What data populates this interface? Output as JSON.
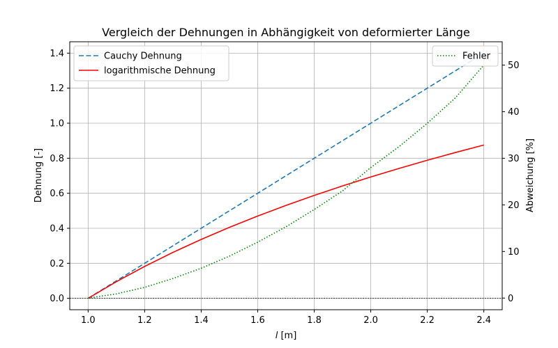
{
  "chart_data": {
    "type": "line",
    "title": "Vergleich der Dehnungen in Abhängigkeit von deformierter Länge",
    "xlabel_italic": "l",
    "xlabel_unit": " [m]",
    "ylabel_left": "Dehnung [-]",
    "ylabel_right": "Abweichung [%]",
    "xlim": [
      0.935,
      2.465
    ],
    "ylim_left": [
      -0.065,
      1.465
    ],
    "ylim_right": [
      -2.5,
      55
    ],
    "x_ticks": [
      1.0,
      1.2,
      1.4,
      1.6,
      1.8,
      2.0,
      2.2,
      2.4
    ],
    "x_tick_labels": [
      "1.0",
      "1.2",
      "1.4",
      "1.6",
      "1.8",
      "2.0",
      "2.2",
      "2.4"
    ],
    "y_left_ticks": [
      0.0,
      0.2,
      0.4,
      0.6,
      0.8,
      1.0,
      1.2,
      1.4
    ],
    "y_left_tick_labels": [
      "0.0",
      "0.2",
      "0.4",
      "0.6",
      "0.8",
      "1.0",
      "1.2",
      "1.4"
    ],
    "y_right_ticks": [
      0,
      10,
      20,
      30,
      40,
      50
    ],
    "y_right_tick_labels": [
      "0",
      "10",
      "20",
      "30",
      "40",
      "50"
    ],
    "grid": true,
    "zero_line": true,
    "series": [
      {
        "name": "Cauchy Dehnung",
        "axis": "left",
        "color": "#1f77b4",
        "style": "dashed",
        "x": [
          1.0,
          1.1,
          1.2,
          1.3,
          1.4,
          1.5,
          1.6,
          1.7,
          1.8,
          1.9,
          2.0,
          2.1,
          2.2,
          2.3,
          2.4
        ],
        "y": [
          0.0,
          0.1,
          0.2,
          0.3,
          0.4,
          0.5,
          0.6,
          0.7,
          0.8,
          0.9,
          1.0,
          1.1,
          1.2,
          1.3,
          1.4
        ]
      },
      {
        "name": "logarithmische Dehnung",
        "axis": "left",
        "color": "#ff0000",
        "style": "solid",
        "x": [
          1.0,
          1.1,
          1.2,
          1.3,
          1.4,
          1.5,
          1.6,
          1.7,
          1.8,
          1.9,
          2.0,
          2.1,
          2.2,
          2.3,
          2.4
        ],
        "y": [
          0.0,
          0.0953,
          0.1823,
          0.2624,
          0.3365,
          0.4055,
          0.47,
          0.5306,
          0.5878,
          0.6419,
          0.6931,
          0.7419,
          0.7885,
          0.8329,
          0.8755
        ]
      },
      {
        "name": "Fehler",
        "axis": "right",
        "color": "#008000",
        "style": "dotted",
        "x": [
          1.0,
          1.1,
          1.2,
          1.3,
          1.4,
          1.5,
          1.6,
          1.7,
          1.8,
          1.9,
          2.0,
          2.1,
          2.2,
          2.3,
          2.4
        ],
        "y": [
          0.0,
          0.9,
          2.3,
          4.2,
          6.4,
          9.0,
          12.0,
          15.3,
          19.0,
          23.0,
          28.0,
          32.5,
          37.5,
          43.0,
          50.0
        ]
      }
    ],
    "legend_left": {
      "placement": "top-left",
      "entries": [
        "Cauchy Dehnung",
        "logarithmische Dehnung"
      ]
    },
    "legend_right": {
      "placement": "top-right",
      "entries": [
        "Fehler"
      ]
    }
  }
}
